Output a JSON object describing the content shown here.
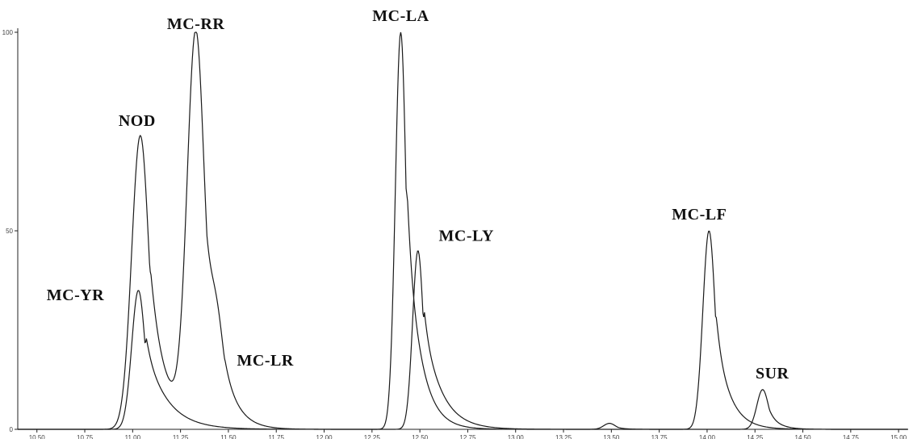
{
  "chart_data": {
    "type": "line",
    "title": "",
    "xlabel": "",
    "ylabel": "",
    "xlim": [
      10.4,
      15.05
    ],
    "ylim": [
      0,
      100
    ],
    "x_ticks": [
      "10.50",
      "10.75",
      "11.00",
      "11.25",
      "11.50",
      "11.75",
      "12.00",
      "12.25",
      "12.50",
      "12.75",
      "13.00",
      "13.25",
      "13.50",
      "13.75",
      "14.00",
      "14.25",
      "14.50",
      "14.75",
      "15.00"
    ],
    "y_ticks": [
      "0",
      "50",
      "100"
    ],
    "series": [
      {
        "peaks": [
          {
            "rt": 11.04,
            "height": 74,
            "width": 0.045,
            "tail": 0.09
          },
          {
            "rt": 11.33,
            "height": 98,
            "width": 0.045,
            "tail": 0.07
          },
          {
            "rt": 11.44,
            "height": 14,
            "width": 0.035,
            "tail": 0.07
          },
          {
            "rt": 12.49,
            "height": 45,
            "width": 0.028,
            "tail": 0.09
          },
          {
            "rt": 13.49,
            "height": 1.5,
            "width": 0.03,
            "tail": 0.04
          },
          {
            "rt": 14.29,
            "height": 10,
            "width": 0.03,
            "tail": 0.05
          }
        ]
      },
      {
        "peaks": [
          {
            "rt": 11.03,
            "height": 35,
            "width": 0.035,
            "tail": 0.11
          },
          {
            "rt": 12.4,
            "height": 100,
            "width": 0.028,
            "tail": 0.07
          },
          {
            "rt": 14.01,
            "height": 50,
            "width": 0.032,
            "tail": 0.07
          }
        ]
      }
    ],
    "annotations": [
      {
        "text": "MC-RR",
        "x": 11.33,
        "y": 98
      },
      {
        "text": "NOD",
        "x": 11.04,
        "y": 74
      },
      {
        "text": "MC-YR",
        "x": 11.03,
        "y": 35
      },
      {
        "text": "MC-LR",
        "x": 11.44,
        "y": 14
      },
      {
        "text": "MC-LA",
        "x": 12.4,
        "y": 100
      },
      {
        "text": "MC-LY",
        "x": 12.49,
        "y": 45
      },
      {
        "text": "MC-LF",
        "x": 14.01,
        "y": 50
      },
      {
        "text": "SUR",
        "x": 14.29,
        "y": 10
      }
    ]
  }
}
